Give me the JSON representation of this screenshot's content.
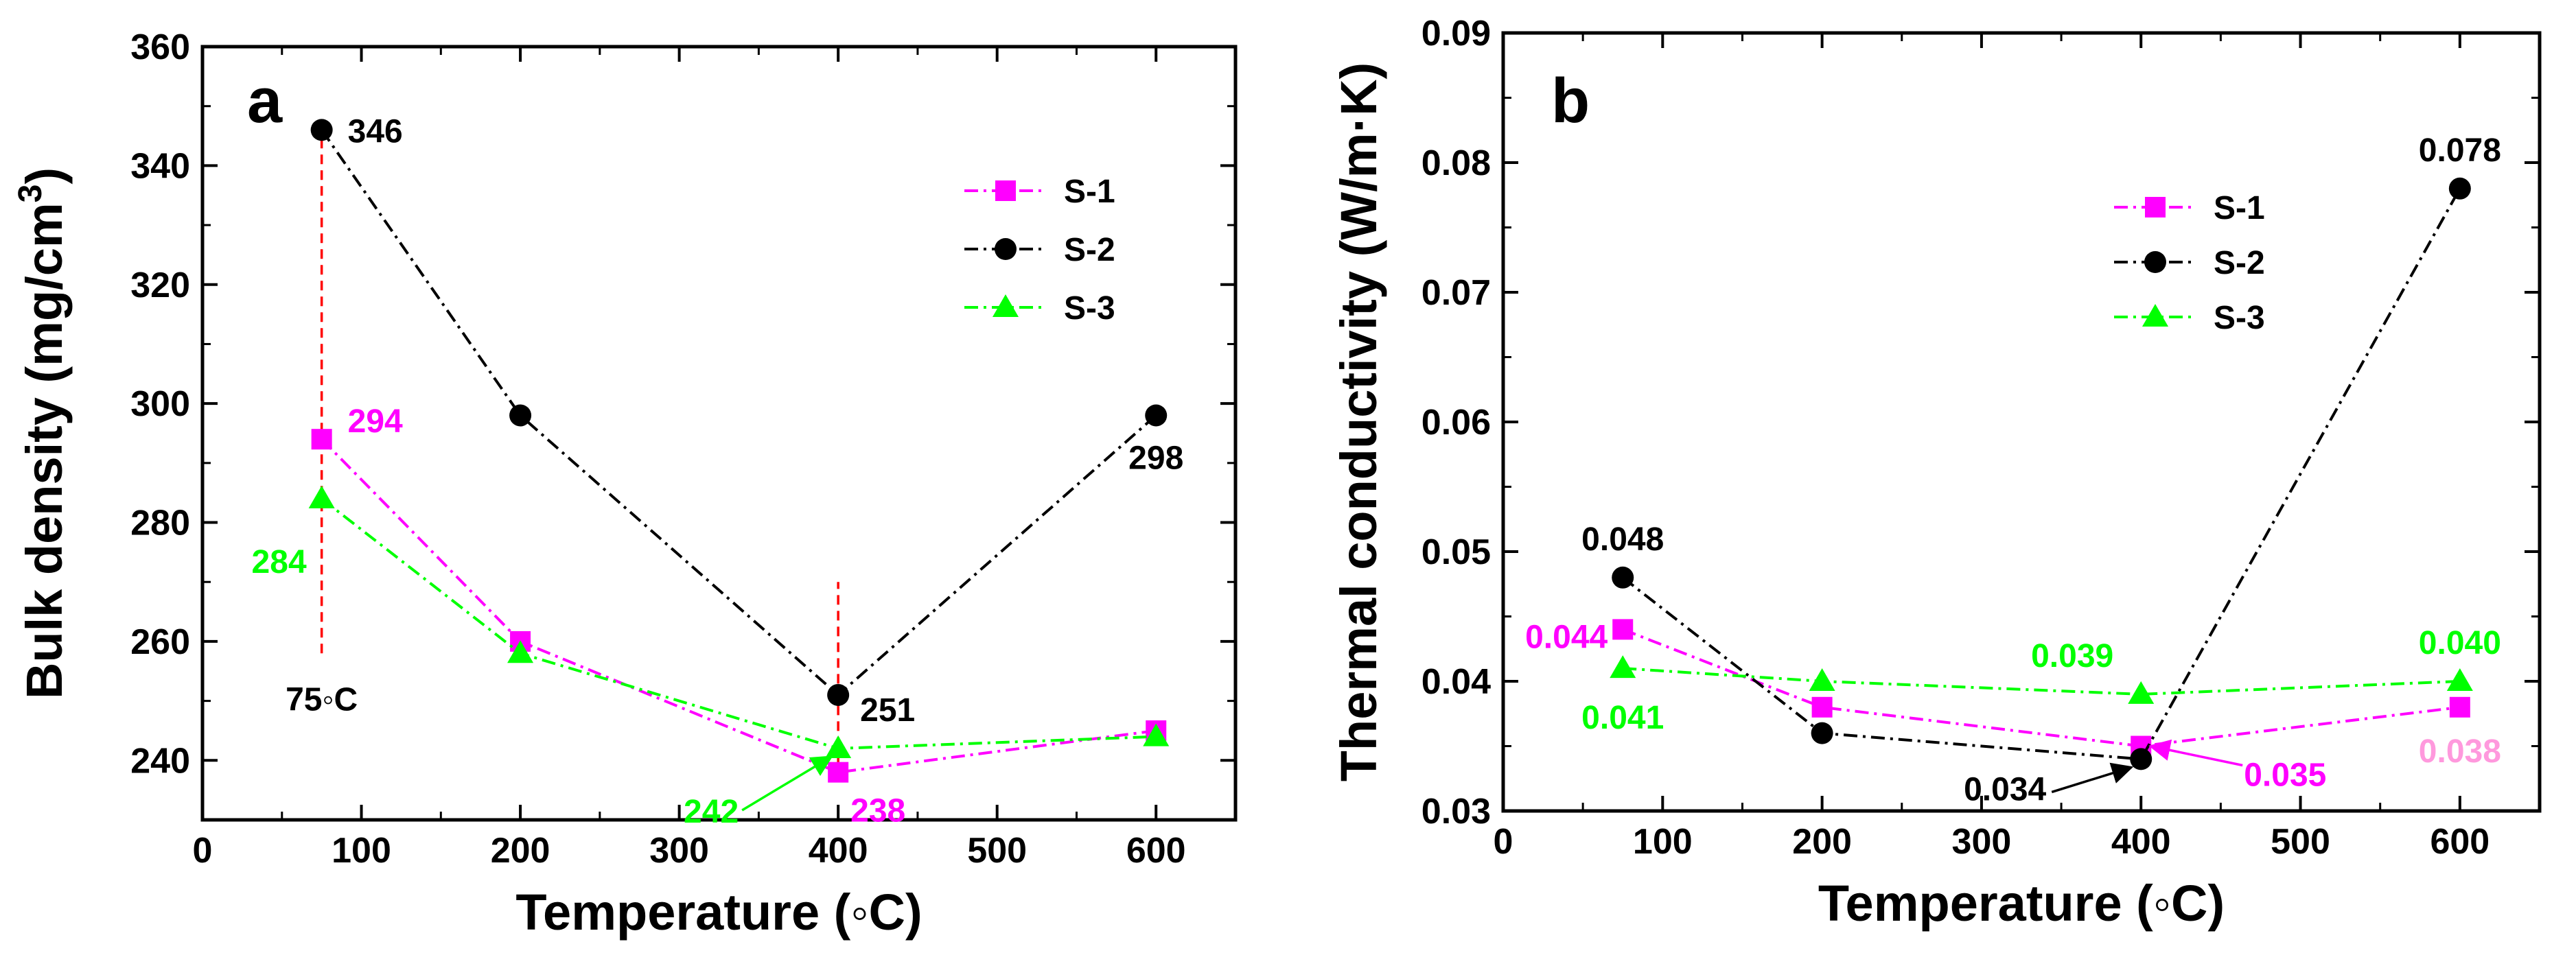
{
  "chart_data": [
    {
      "type": "line",
      "panel": "a",
      "xlabel": "Temperature (◦C)",
      "ylabel": "Bulk density (mg/cm",
      "ylabel_sup": "3",
      "ylabel_end": ")",
      "xlim": [
        0,
        650
      ],
      "ylim": [
        230,
        360
      ],
      "xticks": [
        0,
        100,
        200,
        300,
        400,
        500,
        600
      ],
      "yticks": [
        240,
        260,
        280,
        300,
        320,
        340,
        360
      ],
      "grid": false,
      "legend_position": "top-right",
      "x": [
        75,
        200,
        400,
        600
      ],
      "series": [
        {
          "name": "S-1",
          "color": "#ff00ff",
          "marker": "square",
          "values": [
            294,
            260,
            238,
            245
          ]
        },
        {
          "name": "S-2",
          "color": "#000000",
          "marker": "circle",
          "values": [
            346,
            298,
            251,
            298
          ]
        },
        {
          "name": "S-3",
          "color": "#00ff00",
          "marker": "triangle",
          "values": [
            284,
            258,
            242,
            244
          ]
        }
      ],
      "reference_lines": [
        {
          "x": 75,
          "y_from": 258,
          "y_to": 348,
          "color": "#ff0000"
        },
        {
          "x": 400,
          "y_from": 237,
          "y_to": 270,
          "color": "#ff0000"
        }
      ],
      "annotations": [
        {
          "text": "346",
          "x": 75,
          "y": 346,
          "color": "#000000",
          "pos": "right"
        },
        {
          "text": "294",
          "x": 75,
          "y": 294,
          "color": "#ff00ff",
          "pos": "right"
        },
        {
          "text": "284",
          "x": 75,
          "y": 284,
          "color": "#00ff00",
          "pos": "below-left"
        },
        {
          "text": "75◦C",
          "x": 75,
          "y": 258,
          "color": "#000000",
          "pos": "below"
        },
        {
          "text": "251",
          "x": 400,
          "y": 251,
          "color": "#000000",
          "pos": "below-right"
        },
        {
          "text": "298",
          "x": 600,
          "y": 298,
          "color": "#000000",
          "pos": "below"
        },
        {
          "text": "242",
          "x": 400,
          "y": 242,
          "color": "#00ff00",
          "pos": "arrow-left"
        },
        {
          "text": "238",
          "x": 400,
          "y": 238,
          "color": "#ff00ff",
          "pos": "below-right"
        }
      ]
    },
    {
      "type": "line",
      "panel": "b",
      "xlabel": "Temperature (◦C)",
      "ylabel": "Thermal conductivity (W/m·K)",
      "xlim": [
        0,
        650
      ],
      "ylim": [
        0.03,
        0.09
      ],
      "xticks": [
        0,
        100,
        200,
        300,
        400,
        500,
        600
      ],
      "yticks": [
        0.03,
        0.04,
        0.05,
        0.06,
        0.07,
        0.08,
        0.09
      ],
      "ytick_labels": [
        "0.03",
        "0.04",
        "0.05",
        "0.06",
        "0.07",
        "0.08",
        "0.09"
      ],
      "grid": false,
      "legend_position": "top-right",
      "x": [
        75,
        200,
        400,
        600
      ],
      "series": [
        {
          "name": "S-1",
          "color": "#ff00ff",
          "marker": "square",
          "values": [
            0.044,
            0.038,
            0.035,
            0.038
          ]
        },
        {
          "name": "S-2",
          "color": "#000000",
          "marker": "circle",
          "values": [
            0.048,
            0.036,
            0.034,
            0.078
          ]
        },
        {
          "name": "S-3",
          "color": "#00ff00",
          "marker": "triangle",
          "values": [
            0.041,
            0.04,
            0.039,
            0.04
          ]
        }
      ],
      "annotations": [
        {
          "text": "0.048",
          "x": 75,
          "y": 0.048,
          "color": "#000000",
          "pos": "above"
        },
        {
          "text": "0.044",
          "x": 75,
          "y": 0.044,
          "color": "#ff00ff",
          "pos": "left"
        },
        {
          "text": "0.041",
          "x": 75,
          "y": 0.041,
          "color": "#00ff00",
          "pos": "below"
        },
        {
          "text": "0.039",
          "x": 400,
          "y": 0.039,
          "color": "#00ff00",
          "pos": "above-left"
        },
        {
          "text": "0.034",
          "x": 400,
          "y": 0.034,
          "color": "#000000",
          "pos": "arrow-left"
        },
        {
          "text": "0.035",
          "x": 400,
          "y": 0.035,
          "color": "#ff00ff",
          "pos": "arrow-right"
        },
        {
          "text": "0.040",
          "x": 600,
          "y": 0.04,
          "color": "#00ff00",
          "pos": "above"
        },
        {
          "text": "0.038",
          "x": 600,
          "y": 0.038,
          "color": "#ff99dd",
          "pos": "below"
        },
        {
          "text": "0.078",
          "x": 600,
          "y": 0.078,
          "color": "#000000",
          "pos": "above"
        }
      ]
    }
  ]
}
